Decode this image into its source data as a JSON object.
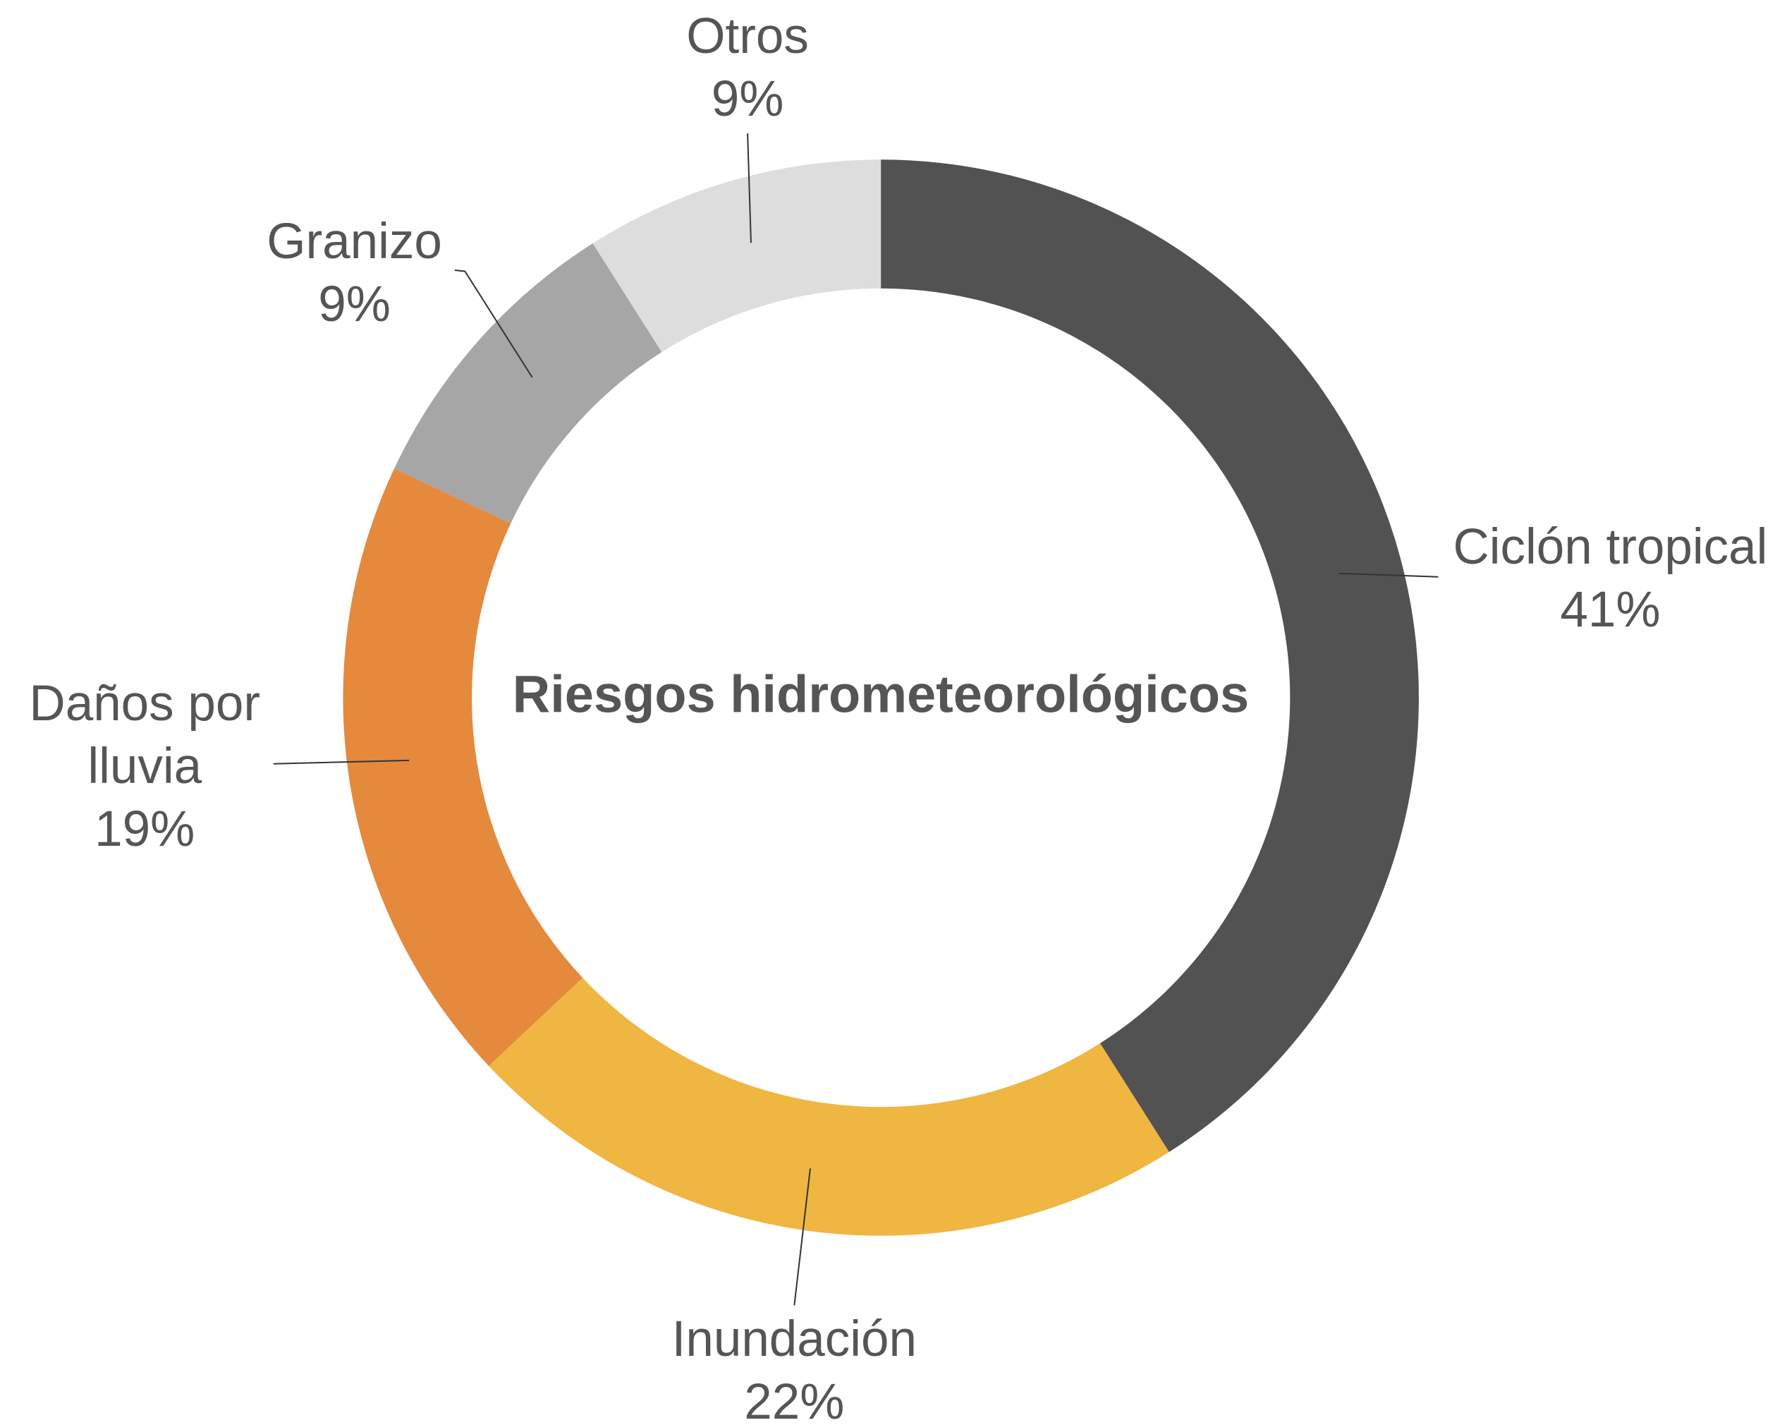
{
  "chart_data": {
    "type": "pie",
    "donut": true,
    "title": "Riesgos hidrometeorológicos",
    "categories": [
      "Ciclón tropical",
      "Inundación",
      "Daños por lluvia",
      "Granizo",
      "Otros"
    ],
    "values": [
      41,
      22,
      19,
      9,
      9
    ],
    "value_labels": [
      "41%",
      "22%",
      "19%",
      "9%",
      "9%"
    ],
    "colors": [
      "#525252",
      "#f0b642",
      "#e5893d",
      "#a6a6a6",
      "#dddddd"
    ]
  }
}
